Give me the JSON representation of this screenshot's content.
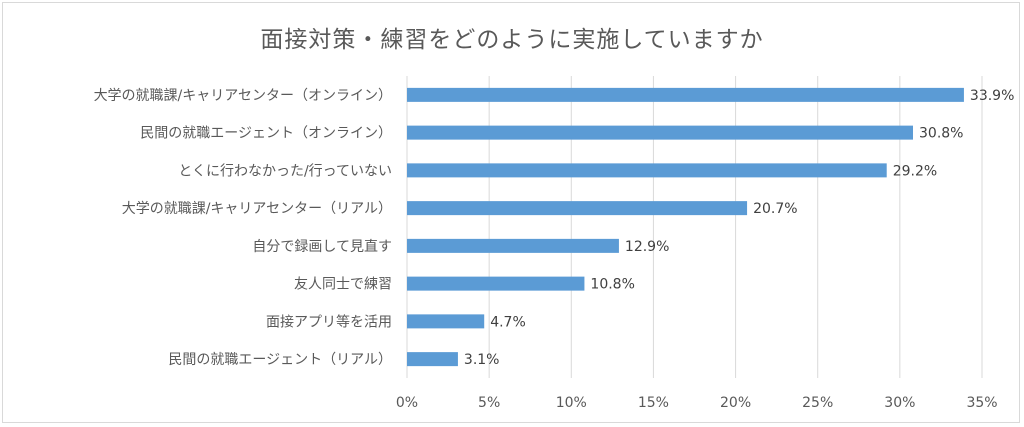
{
  "chart_data": {
    "type": "bar",
    "orientation": "horizontal",
    "title": "面接対策・練習をどのように実施していますか",
    "categories": [
      "大学の就職課/キャリアセンター（オンライン）",
      "民間の就職エージェント（オンライン）",
      "とくに行わなかった/行っていない",
      "大学の就職課/キャリアセンター（リアル）",
      "自分で録画して見直す",
      "友人同士で練習",
      "面接アプリ等を活用",
      "民間の就職エージェント（リアル）"
    ],
    "values": [
      33.9,
      30.8,
      29.2,
      20.7,
      12.9,
      10.8,
      4.7,
      3.1
    ],
    "value_labels": [
      "33.9%",
      "30.8%",
      "29.2%",
      "20.7%",
      "12.9%",
      "10.8%",
      "4.7%",
      "3.1%"
    ],
    "xlim": [
      0,
      35
    ],
    "xticks": [
      0,
      5,
      10,
      15,
      20,
      25,
      30,
      35
    ],
    "xtick_labels": [
      "0%",
      "5%",
      "10%",
      "15%",
      "20%",
      "25%",
      "30%",
      "35%"
    ],
    "xlabel": "",
    "ylabel": "",
    "grid": true,
    "bar_color": "#5b9bd5",
    "grid_color": "#d9d9d9"
  }
}
